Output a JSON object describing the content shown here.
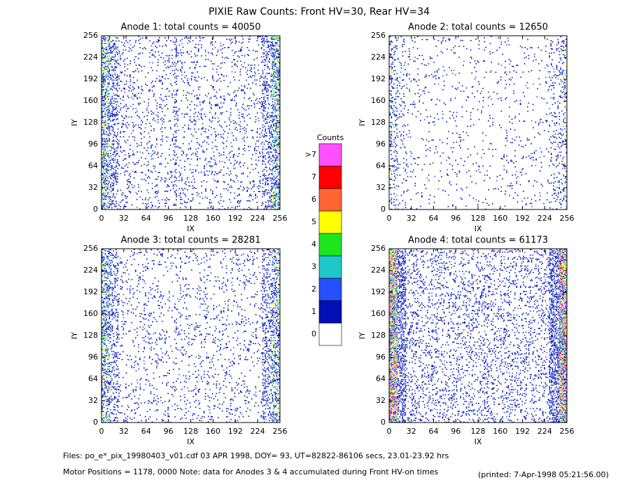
{
  "title": "PIXIE Raw Counts:  Front HV=30, Rear HV=34",
  "chart_data": [
    {
      "type": "heatmap",
      "title": "Anode 1: total counts = 40050",
      "xlabel": "IX",
      "ylabel": "IY",
      "xlim": [
        0,
        256
      ],
      "ylim": [
        0,
        256
      ],
      "xticks": [
        0,
        32,
        64,
        96,
        128,
        160,
        192,
        224,
        256
      ],
      "yticks": [
        0,
        32,
        64,
        96,
        128,
        160,
        192,
        224,
        256
      ]
    },
    {
      "type": "heatmap",
      "title": "Anode 2: total counts = 12650",
      "xlabel": "IX",
      "ylabel": "IY",
      "xlim": [
        0,
        256
      ],
      "ylim": [
        0,
        256
      ],
      "xticks": [
        0,
        32,
        64,
        96,
        128,
        160,
        192,
        224,
        256
      ],
      "yticks": [
        0,
        32,
        64,
        96,
        128,
        160,
        192,
        224,
        256
      ]
    },
    {
      "type": "heatmap",
      "title": "Anode 3: total counts = 28281",
      "xlabel": "IX",
      "ylabel": "IY",
      "xlim": [
        0,
        256
      ],
      "ylim": [
        0,
        256
      ],
      "xticks": [
        0,
        32,
        64,
        96,
        128,
        160,
        192,
        224,
        256
      ],
      "yticks": [
        0,
        32,
        64,
        96,
        128,
        160,
        192,
        224,
        256
      ]
    },
    {
      "type": "heatmap",
      "title": "Anode 4: total counts = 61173",
      "xlabel": "IX",
      "ylabel": "IY",
      "xlim": [
        0,
        256
      ],
      "ylim": [
        0,
        256
      ],
      "xticks": [
        0,
        32,
        64,
        96,
        128,
        160,
        192,
        224,
        256
      ],
      "yticks": [
        0,
        32,
        64,
        96,
        128,
        160,
        192,
        224,
        256
      ]
    }
  ],
  "colorbar": {
    "title": "Counts",
    "levels": [
      0,
      1,
      2,
      3,
      4,
      5,
      6,
      7,
      ">7"
    ],
    "colors": [
      "#ffffff",
      "#0010b4",
      "#2450ff",
      "#1ec8c8",
      "#1ee61e",
      "#ffff00",
      "#ff6432",
      "#ff0000",
      "#ff50ff"
    ]
  },
  "footer": {
    "files": "Files: po_e*_pix_19980403_v01.cdf    03 APR 1998, DOY= 93, UT=82822-86106 secs, 23.01-23.92 hrs",
    "motor": "Motor Positions = 1178, 0000    Note: data for Anodes 3 & 4 accumulated during Front HV-on times",
    "printed": "(printed:  7-Apr-1998 05:21:56.00)"
  }
}
